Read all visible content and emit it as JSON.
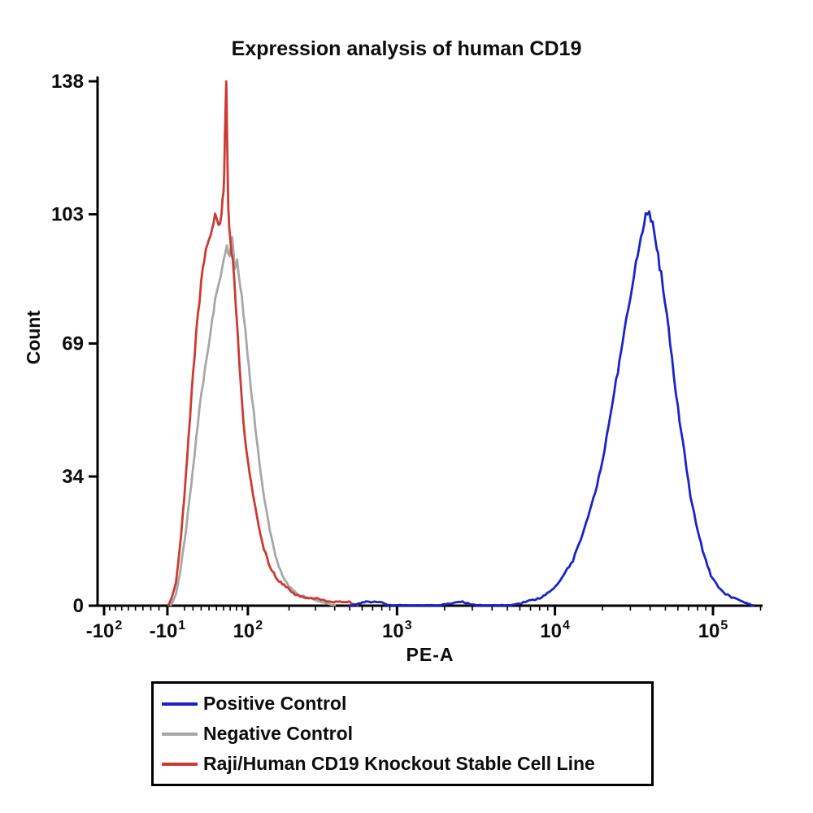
{
  "chart_data": {
    "type": "line",
    "subtype": "flow-cytometry-histogram",
    "title": "Expression analysis of human CD19",
    "xlabel": "PE-A",
    "ylabel": "Count",
    "x_scale": "biexponential",
    "ylim": [
      0,
      138
    ],
    "y_ticks": [
      0,
      34,
      69,
      103,
      138
    ],
    "x_ticks": [
      {
        "base": "-10",
        "exp": "2",
        "value": -100
      },
      {
        "base": "-10",
        "exp": "1",
        "value": -10
      },
      {
        "base": "10",
        "exp": "2",
        "value": 100
      },
      {
        "base": "10",
        "exp": "3",
        "value": 1000
      },
      {
        "base": "10",
        "exp": "4",
        "value": 10000
      },
      {
        "base": "10",
        "exp": "5",
        "value": 100000
      }
    ],
    "grid": false,
    "legend_position": "bottom",
    "series": [
      {
        "name": "Positive Control",
        "color": "#1a23c8",
        "peak_x": 39500,
        "peak_count": 103,
        "points": [
          [
            500,
            0
          ],
          [
            620,
            1
          ],
          [
            700,
            1
          ],
          [
            780,
            1
          ],
          [
            900,
            0
          ],
          [
            1800,
            0
          ],
          [
            2600,
            1
          ],
          [
            3200,
            0
          ],
          [
            5200,
            0
          ],
          [
            6500,
            1
          ],
          [
            8000,
            2
          ],
          [
            9500,
            4
          ],
          [
            11000,
            7
          ],
          [
            13000,
            12
          ],
          [
            15000,
            19
          ],
          [
            17500,
            28
          ],
          [
            20000,
            38
          ],
          [
            22500,
            50
          ],
          [
            25000,
            62
          ],
          [
            27500,
            72
          ],
          [
            30000,
            82
          ],
          [
            32500,
            90
          ],
          [
            35000,
            97
          ],
          [
            37500,
            102
          ],
          [
            39500,
            103
          ],
          [
            41500,
            100
          ],
          [
            44000,
            94
          ],
          [
            47000,
            87
          ],
          [
            51000,
            77
          ],
          [
            55000,
            65
          ],
          [
            60000,
            52
          ],
          [
            66000,
            40
          ],
          [
            72000,
            29
          ],
          [
            80000,
            20
          ],
          [
            88000,
            13
          ],
          [
            97000,
            8
          ],
          [
            108000,
            5
          ],
          [
            120000,
            3
          ],
          [
            135000,
            2
          ],
          [
            155000,
            1
          ],
          [
            180000,
            0
          ]
        ]
      },
      {
        "name": "Negative Control",
        "color": "#a7a7a7",
        "peak_x": 73,
        "peak_count": 96,
        "points": [
          [
            -6,
            0
          ],
          [
            0,
            3
          ],
          [
            5,
            9
          ],
          [
            10,
            17
          ],
          [
            16,
            28
          ],
          [
            22,
            40
          ],
          [
            28,
            52
          ],
          [
            35,
            63
          ],
          [
            42,
            72
          ],
          [
            48,
            80
          ],
          [
            54,
            86
          ],
          [
            60,
            91
          ],
          [
            65,
            95
          ],
          [
            69,
            92
          ],
          [
            73,
            96
          ],
          [
            77,
            89
          ],
          [
            81,
            92
          ],
          [
            86,
            85
          ],
          [
            92,
            77
          ],
          [
            99,
            67
          ],
          [
            107,
            56
          ],
          [
            115,
            46
          ],
          [
            124,
            37
          ],
          [
            134,
            28
          ],
          [
            147,
            20
          ],
          [
            161,
            13
          ],
          [
            179,
            8
          ],
          [
            200,
            5
          ],
          [
            230,
            3
          ],
          [
            270,
            2
          ],
          [
            330,
            1
          ],
          [
            400,
            0
          ]
        ]
      },
      {
        "name": "Raji/Human CD19 Knockout Stable Cell Line",
        "color": "#cc3a33",
        "peak_x": 64,
        "peak_count": 138,
        "points": [
          [
            -9,
            0
          ],
          [
            -5,
            2
          ],
          [
            0,
            6
          ],
          [
            4,
            14
          ],
          [
            8,
            24
          ],
          [
            13,
            38
          ],
          [
            18,
            55
          ],
          [
            24,
            72
          ],
          [
            30,
            85
          ],
          [
            36,
            93
          ],
          [
            42,
            98
          ],
          [
            48,
            103
          ],
          [
            53,
            99
          ],
          [
            57,
            104
          ],
          [
            60,
            108
          ],
          [
            62,
            122
          ],
          [
            64,
            138
          ],
          [
            65,
            126
          ],
          [
            67,
            104
          ],
          [
            70,
            96
          ],
          [
            74,
            91
          ],
          [
            79,
            79
          ],
          [
            85,
            63
          ],
          [
            92,
            48
          ],
          [
            100,
            38
          ],
          [
            110,
            29
          ],
          [
            121,
            21
          ],
          [
            133,
            15
          ],
          [
            148,
            10
          ],
          [
            166,
            7
          ],
          [
            190,
            5
          ],
          [
            220,
            3
          ],
          [
            258,
            2
          ],
          [
            305,
            2
          ],
          [
            365,
            1
          ],
          [
            430,
            1
          ],
          [
            495,
            1
          ],
          [
            560,
            0
          ]
        ]
      }
    ]
  }
}
